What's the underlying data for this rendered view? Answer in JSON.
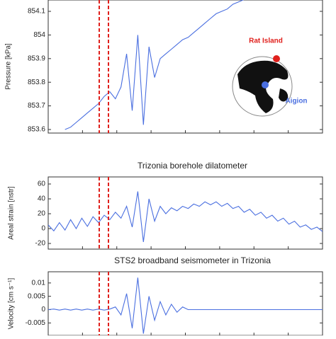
{
  "chart_data": [
    {
      "type": "line",
      "ylabel": "Pressure [kPa]",
      "color": "#4a6fe0",
      "ylim": [
        853.585,
        854.148
      ],
      "yticks": [
        853.6,
        853.7,
        853.8,
        853.9,
        854,
        854.1
      ],
      "values": [
        null,
        null,
        null,
        853.6,
        853.61,
        853.63,
        853.65,
        853.67,
        853.69,
        853.71,
        853.74,
        853.76,
        853.73,
        853.78,
        853.92,
        853.68,
        854.0,
        853.62,
        853.95,
        853.82,
        853.9,
        853.92,
        853.94,
        853.96,
        853.98,
        853.99,
        854.01,
        854.03,
        854.05,
        854.07,
        854.09,
        854.1,
        854.11,
        854.13,
        854.14,
        854.15,
        854.16,
        null,
        null,
        null,
        null,
        null,
        null,
        null,
        null,
        null,
        null,
        null,
        null,
        null
      ],
      "annotations": [
        {
          "text": "Rat Island",
          "color": "#e0201c"
        },
        {
          "text": "Aigion",
          "color": "#4a6fe0"
        }
      ]
    },
    {
      "type": "line",
      "title": "Trizonia borehole dilatometer",
      "ylabel": "Areal strain [nstr]",
      "color": "#4a6fe0",
      "ylim": [
        -27.6,
        69.5
      ],
      "yticks": [
        -20,
        0,
        20,
        40,
        60
      ],
      "values": [
        5,
        -3,
        8,
        -2,
        12,
        0,
        14,
        3,
        16,
        8,
        18,
        12,
        22,
        14,
        30,
        2,
        50,
        -18,
        40,
        10,
        30,
        20,
        28,
        24,
        30,
        27,
        33,
        30,
        36,
        32,
        36,
        30,
        34,
        27,
        30,
        22,
        26,
        18,
        22,
        14,
        18,
        10,
        14,
        6,
        10,
        2,
        5,
        -1,
        2,
        -4
      ]
    },
    {
      "type": "line",
      "title": "STS2 broadband seismometer in Trizonia",
      "ylabel": "Velocity [cm s⁻¹]",
      "color": "#4a6fe0",
      "ylim": [
        -0.0097,
        0.0142
      ],
      "yticks": [
        -0.005,
        0,
        0.005,
        0.01
      ],
      "values": [
        0,
        0.0002,
        -0.0002,
        0.0002,
        -0.0002,
        0.0002,
        -0.0002,
        0.0002,
        -0.0002,
        0.0002,
        -0.0002,
        0.0002,
        0.001,
        -0.002,
        0.006,
        -0.007,
        0.012,
        -0.009,
        0.005,
        -0.004,
        0.003,
        -0.002,
        0.002,
        -0.001,
        0.001,
        0,
        0,
        0,
        0,
        0,
        0,
        0,
        0,
        0,
        0,
        0,
        0,
        0,
        0,
        0,
        0,
        0,
        0,
        0,
        0,
        0,
        0,
        0,
        0,
        0
      ]
    }
  ]
}
